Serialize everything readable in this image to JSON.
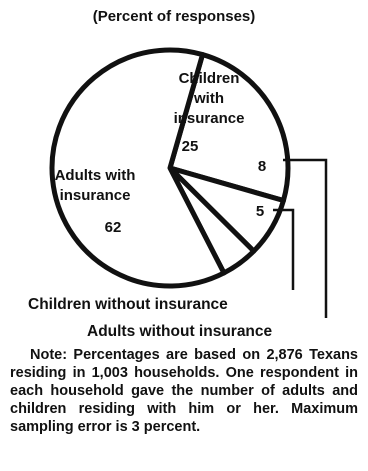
{
  "subtitle": "(Percent of responses)",
  "chart_data": {
    "type": "pie",
    "title": "",
    "subtitle": "(Percent of responses)",
    "start": "Adults with insurance begins near the top-left and runs counter-clockwise",
    "slices": [
      {
        "label": "Children with insurance",
        "value": 25
      },
      {
        "label": "Children without insurance",
        "value": 8
      },
      {
        "label": "Adults without insurance",
        "value": 5
      },
      {
        "label": "Adults with insurance",
        "value": 62
      }
    ],
    "labels": {
      "children_insured": [
        "Children",
        "with",
        "insurance"
      ],
      "adults_insured": [
        "Adults with",
        "insurance"
      ],
      "children_uninsured": "Children without insurance",
      "adults_uninsured": "Adults without insurance"
    }
  },
  "note": "Note: Percentages are based on 2,876 Texans residing in 1,003 households. One respondent in each household gave the number of adults and children residing with him or her. Maximum sampling error is 3 percent.",
  "colors": {
    "ink": "#111111",
    "paper": "#ffffff"
  }
}
